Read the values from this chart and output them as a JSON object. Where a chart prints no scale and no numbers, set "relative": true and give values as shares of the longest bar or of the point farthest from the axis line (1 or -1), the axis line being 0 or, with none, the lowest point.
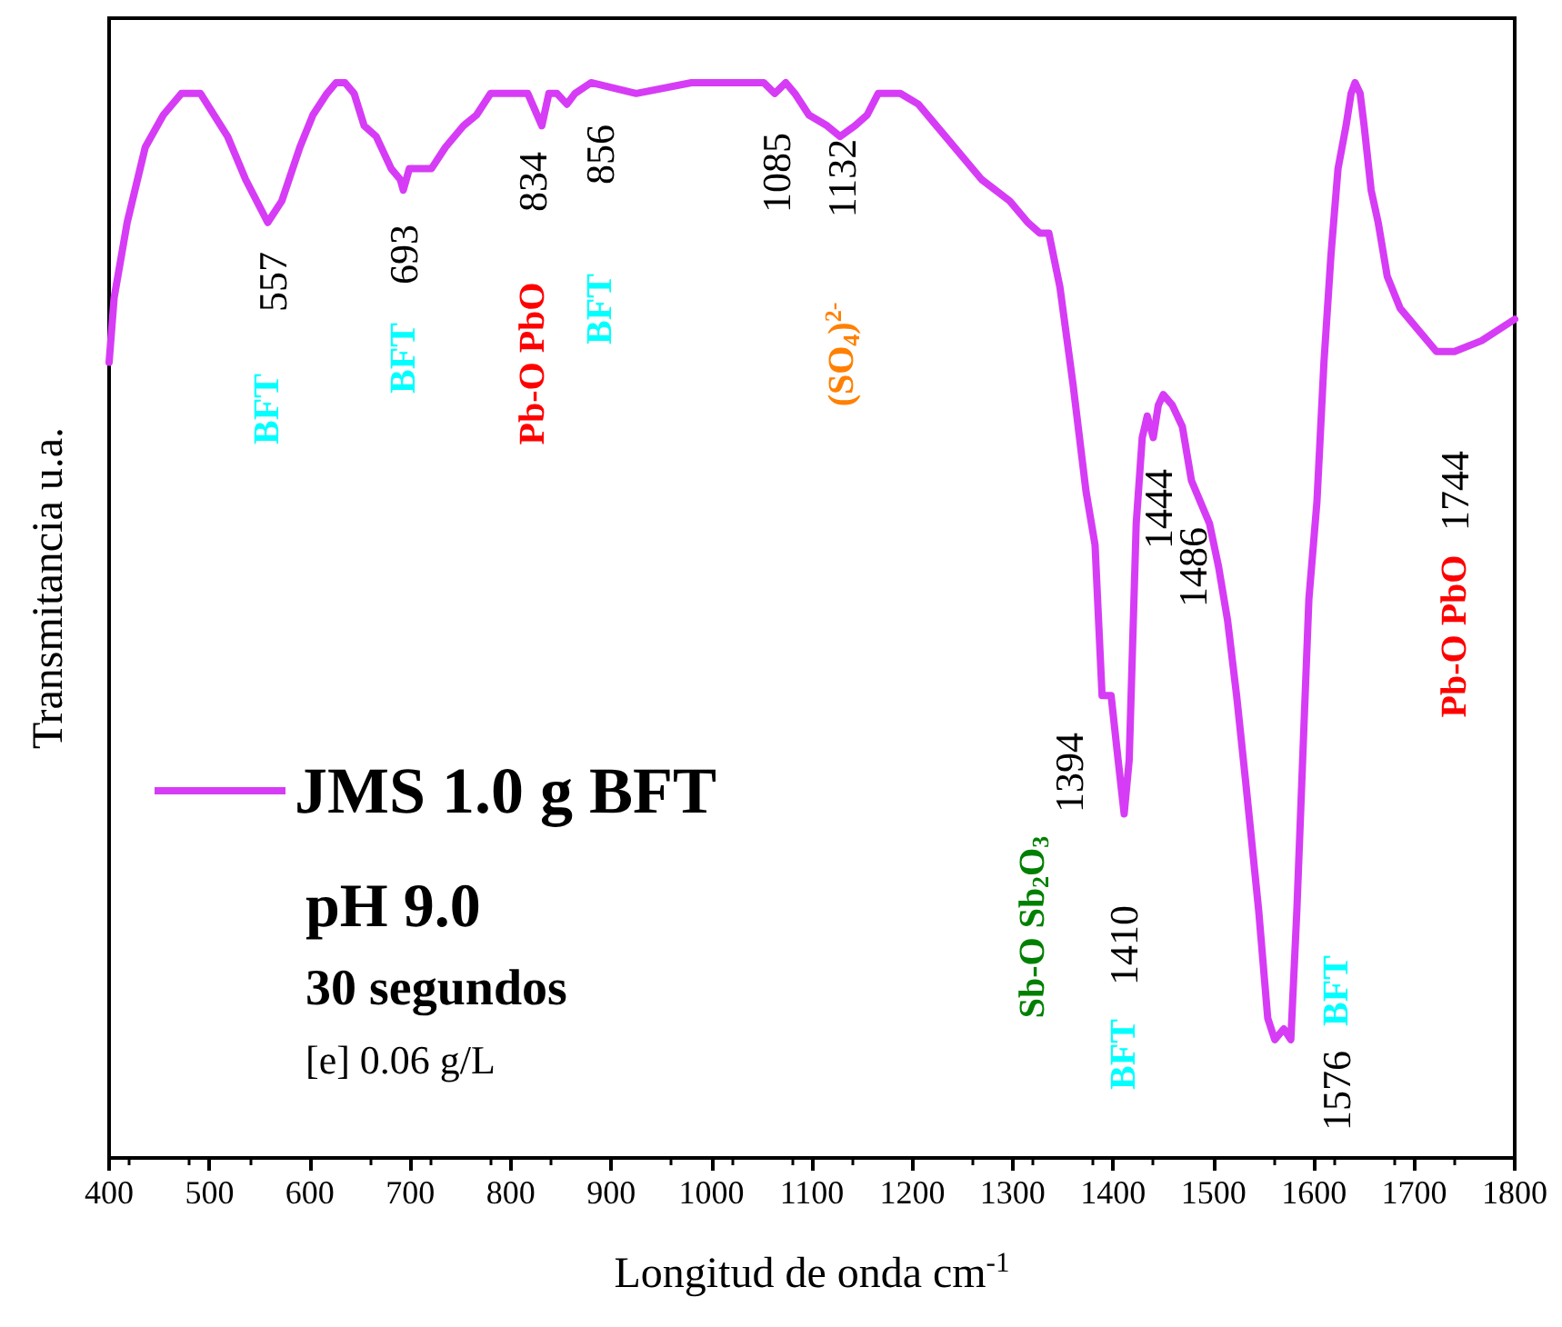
{
  "chart_data": {
    "type": "line",
    "relative": true,
    "xlabel": "Longitud de onda cm$^{-1}$",
    "ylabel": "Transmitancia u.a.",
    "xlim": [
      400,
      1800
    ],
    "xticks": [
      400,
      500,
      600,
      700,
      800,
      900,
      1000,
      1100,
      1200,
      1300,
      1400,
      1500,
      1600,
      1700,
      1800
    ],
    "legend": "bottom left",
    "marker": "none",
    "line_style": "solid",
    "series": [
      {
        "name": "JMS 1.0 g BFT",
        "color": "#d63cf5",
        "x": [
          400,
          405,
          418,
          436,
          454,
          472,
          491,
          518,
          536,
          558,
          572,
          590,
          603,
          617,
          626,
          635,
          644,
          654,
          666,
          681,
          690,
          693,
          699,
          708,
          721,
          735,
          753,
          766,
          780,
          798,
          817,
          831,
          838,
          846,
          856,
          864,
          880,
          925,
          980,
          1016,
          1052,
          1063,
          1074,
          1083,
          1097,
          1115,
          1128,
          1143,
          1155,
          1166,
          1188,
          1206,
          1233,
          1269,
          1297,
          1315,
          1327,
          1336,
          1347,
          1360,
          1373,
          1382,
          1389,
          1398,
          1405,
          1411,
          1416,
          1423,
          1429,
          1434,
          1440,
          1445,
          1450,
          1459,
          1469,
          1478,
          1487,
          1496,
          1505,
          1514,
          1523,
          1532,
          1545,
          1554,
          1561,
          1570,
          1577,
          1583,
          1590,
          1595,
          1603,
          1610,
          1617,
          1624,
          1632,
          1637,
          1641,
          1646,
          1650,
          1657,
          1664,
          1673,
          1686,
          1704,
          1722,
          1740,
          1767,
          1800
        ],
        "values": [
          0.74,
          0.8,
          0.87,
          0.94,
          0.97,
          0.99,
          0.99,
          0.95,
          0.91,
          0.87,
          0.89,
          0.94,
          0.97,
          0.99,
          1.0,
          1.0,
          0.99,
          0.96,
          0.95,
          0.92,
          0.91,
          0.9,
          0.92,
          0.92,
          0.92,
          0.94,
          0.96,
          0.97,
          0.99,
          0.99,
          0.99,
          0.96,
          0.99,
          0.99,
          0.98,
          0.99,
          1.0,
          0.99,
          1.0,
          1.0,
          1.0,
          0.99,
          1.0,
          0.99,
          0.97,
          0.96,
          0.95,
          0.96,
          0.97,
          0.99,
          0.99,
          0.98,
          0.95,
          0.91,
          0.89,
          0.87,
          0.86,
          0.86,
          0.81,
          0.72,
          0.62,
          0.57,
          0.43,
          0.43,
          0.37,
          0.32,
          0.37,
          0.59,
          0.67,
          0.69,
          0.67,
          0.7,
          0.71,
          0.7,
          0.68,
          0.63,
          0.61,
          0.59,
          0.55,
          0.5,
          0.43,
          0.35,
          0.23,
          0.13,
          0.11,
          0.12,
          0.11,
          0.23,
          0.4,
          0.52,
          0.61,
          0.74,
          0.84,
          0.92,
          0.96,
          0.99,
          1.0,
          0.99,
          0.96,
          0.9,
          0.87,
          0.82,
          0.79,
          0.77,
          0.75,
          0.75,
          0.76,
          0.78
        ]
      }
    ],
    "annotations": [
      "557",
      "BFT",
      "693",
      "BFT",
      "834",
      "Pb-O PbO",
      "856",
      "BFT",
      "1085",
      "1132",
      "(SO$_{4}$)$^{2-}$",
      "1744",
      "Pb-O PbO",
      "1444",
      "1486",
      "1394",
      "Sb-O Sb$_{2}$O$_{3}$",
      "1410",
      "BFT",
      "BFT",
      "1576",
      "pH 9.0",
      "30 segundos",
      "[e] 0.06 g/L"
    ]
  }
}
